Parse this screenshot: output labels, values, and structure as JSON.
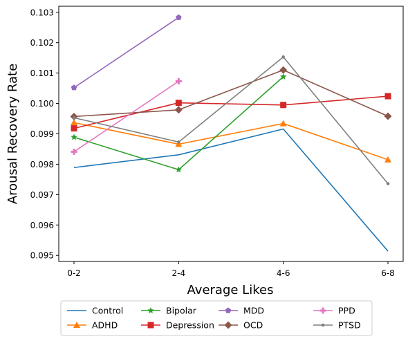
{
  "chart_data": {
    "type": "line",
    "categories": [
      "0-2",
      "2-4",
      "4-6",
      "6-8"
    ],
    "xlabel": "Average Likes",
    "ylabel": "Arousal Recovery Rate",
    "ylim": [
      0.0948,
      0.1032
    ],
    "yticks": [
      "0.095",
      "0.096",
      "0.097",
      "0.098",
      "0.099",
      "0.100",
      "0.101",
      "0.102",
      "0.103"
    ],
    "grid": false,
    "legend_position": "bottom-center",
    "series": [
      {
        "name": "Control",
        "color": "#1f77b4",
        "marker": "none",
        "values": [
          0.09789,
          0.09831,
          0.09916,
          0.09514
        ]
      },
      {
        "name": "ADHD",
        "color": "#ff7f0e",
        "marker": "triangle",
        "values": [
          0.09937,
          0.09866,
          0.09934,
          0.09815
        ]
      },
      {
        "name": "Bipolar",
        "color": "#2ca02c",
        "marker": "star",
        "values": [
          0.09889,
          0.09782,
          0.10088,
          null
        ]
      },
      {
        "name": "Depression",
        "color": "#d62728",
        "marker": "square",
        "values": [
          0.09918,
          0.10002,
          0.09995,
          0.10024
        ]
      },
      {
        "name": "MDD",
        "color": "#9467bd",
        "marker": "pentagon",
        "values": [
          0.10052,
          0.10283,
          null,
          null
        ]
      },
      {
        "name": "OCD",
        "color": "#8c564b",
        "marker": "diamond",
        "values": [
          0.09957,
          0.09979,
          0.1011,
          0.09958
        ]
      },
      {
        "name": "PPD",
        "color": "#e377c2",
        "marker": "plus",
        "values": [
          0.09841,
          0.10073,
          null,
          null
        ]
      },
      {
        "name": "PTSD",
        "color": "#7f7f7f",
        "marker": "dot",
        "values": [
          0.09953,
          0.09873,
          0.10153,
          0.09736
        ]
      }
    ]
  }
}
